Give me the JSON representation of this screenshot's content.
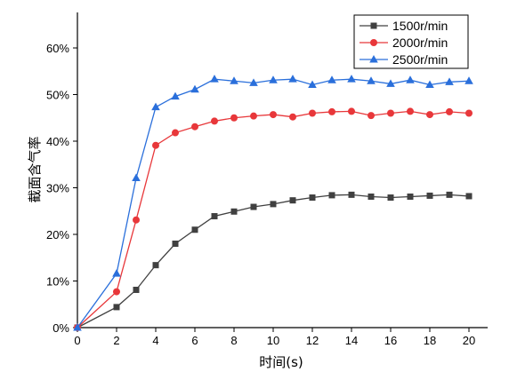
{
  "chart_data": {
    "type": "line",
    "xlabel": "时间(s)",
    "ylabel": "截面含气率",
    "xlim": [
      0,
      21
    ],
    "ylim": [
      0,
      0.68
    ],
    "x_ticks": [
      0,
      2,
      4,
      6,
      8,
      10,
      12,
      14,
      16,
      18,
      20
    ],
    "y_ticks": [
      0,
      0.1,
      0.2,
      0.3,
      0.4,
      0.5,
      0.6
    ],
    "y_tick_labels": [
      "0%",
      "10%",
      "20%",
      "30%",
      "40%",
      "50%",
      "60%"
    ],
    "x_tick_labels": [
      "0",
      "2",
      "4",
      "6",
      "8",
      "10",
      "12",
      "14",
      "16",
      "18",
      "20"
    ],
    "grid": false,
    "legend_position": "top-right",
    "x": [
      0,
      2,
      3,
      4,
      5,
      6,
      7,
      8,
      9,
      10,
      11,
      12,
      13,
      14,
      15,
      16,
      17,
      18,
      19,
      20
    ],
    "series": [
      {
        "name": "1500r/min",
        "color": "#404040",
        "marker": "square",
        "values": [
          0.0,
          0.044,
          0.081,
          0.134,
          0.18,
          0.21,
          0.239,
          0.249,
          0.259,
          0.265,
          0.273,
          0.279,
          0.284,
          0.285,
          0.281,
          0.279,
          0.281,
          0.283,
          0.285,
          0.282
        ]
      },
      {
        "name": "2000r/min",
        "color": "#e8373a",
        "marker": "circle",
        "values": [
          0.0,
          0.077,
          0.231,
          0.391,
          0.418,
          0.431,
          0.443,
          0.45,
          0.454,
          0.457,
          0.452,
          0.46,
          0.463,
          0.464,
          0.455,
          0.46,
          0.464,
          0.457,
          0.463,
          0.46
        ]
      },
      {
        "name": "2500r/min",
        "color": "#2a6fdb",
        "marker": "triangle",
        "values": [
          0.0,
          0.116,
          0.321,
          0.473,
          0.496,
          0.511,
          0.533,
          0.529,
          0.525,
          0.531,
          0.533,
          0.521,
          0.531,
          0.533,
          0.529,
          0.523,
          0.531,
          0.521,
          0.527,
          0.529
        ]
      }
    ]
  }
}
